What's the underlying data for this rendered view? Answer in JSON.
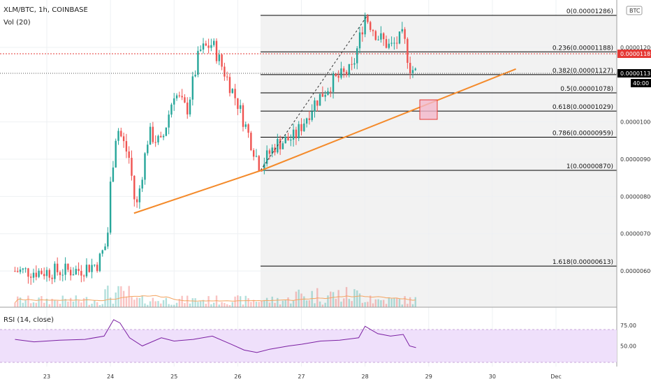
{
  "header": {
    "symbol_line": "XLM/BTC, 1h, COINBASE",
    "volume_label": "Vol (20)",
    "rsi_label": "RSI (14, close)",
    "corner_tag": "BTC"
  },
  "chart_data": {
    "type": "candlestick",
    "symbol": "XLM/BTC",
    "interval": "1h",
    "exchange": "COINBASE",
    "y_ticks": [
      "0.00001200",
      "0.00001000",
      "0.00000900",
      "0.00000800",
      "0.00000700",
      "0.00000600"
    ],
    "x_ticks": [
      "23",
      "24",
      "25",
      "26",
      "27",
      "28",
      "29",
      "30",
      "Dec"
    ],
    "price_tags": {
      "upper": "0.00001181",
      "current": "0.00001131",
      "countdown": "40:00"
    },
    "fib_levels": [
      {
        "label": "0(0.00001286)",
        "value": 1.286e-05
      },
      {
        "label": "0.236(0.00001188)",
        "value": 1.188e-05
      },
      {
        "label": "0.382(0.00001127)",
        "value": 1.127e-05
      },
      {
        "label": "0.5(0.00001078)",
        "value": 1.078e-05
      },
      {
        "label": "0.618(0.00001029)",
        "value": 1.029e-05
      },
      {
        "label": "0.786(0.00000959)",
        "value": 9.59e-06
      },
      {
        "label": "1(0.00000870)",
        "value": 8.7e-06
      },
      {
        "label": "1.618(0.00000613)",
        "value": 6.13e-06
      }
    ],
    "trendline": [
      {
        "date": "24",
        "price": 7.55e-06
      },
      {
        "date": "26",
        "price": 8.7e-06
      },
      {
        "date": "30",
        "price": 1.142e-05
      }
    ],
    "price_path": [
      {
        "x": "22.5",
        "price": 6e-06
      },
      {
        "x": "23.0",
        "price": 5.98e-06
      },
      {
        "x": "23.5",
        "price": 6.02e-06
      },
      {
        "x": "23.8",
        "price": 6.2e-06
      },
      {
        "x": "23.95",
        "price": 6.8e-06
      },
      {
        "x": "24.0",
        "price": 8.3e-06
      },
      {
        "x": "24.1",
        "price": 9.9e-06
      },
      {
        "x": "24.3",
        "price": 9e-06
      },
      {
        "x": "24.4",
        "price": 7.6e-06
      },
      {
        "x": "24.6",
        "price": 9.7e-06
      },
      {
        "x": "24.8",
        "price": 9.4e-06
      },
      {
        "x": "25.0",
        "price": 1.08e-05
      },
      {
        "x": "25.2",
        "price": 1.03e-05
      },
      {
        "x": "25.4",
        "price": 1.19e-05
      },
      {
        "x": "25.6",
        "price": 1.21e-05
      },
      {
        "x": "25.8",
        "price": 1.13e-05
      },
      {
        "x": "26.0",
        "price": 1.05e-05
      },
      {
        "x": "26.2",
        "price": 9.5e-06
      },
      {
        "x": "26.35",
        "price": 8.8e-06
      },
      {
        "x": "26.6",
        "price": 9.4e-06
      },
      {
        "x": "26.9",
        "price": 9.6e-06
      },
      {
        "x": "27.2",
        "price": 1.05e-05
      },
      {
        "x": "27.5",
        "price": 1.11e-05
      },
      {
        "x": "27.8",
        "price": 1.14e-05
      },
      {
        "x": "28.0",
        "price": 1.286e-05
      },
      {
        "x": "28.2",
        "price": 1.23e-05
      },
      {
        "x": "28.4",
        "price": 1.2e-05
      },
      {
        "x": "28.6",
        "price": 1.23e-05
      },
      {
        "x": "28.7",
        "price": 1.15e-05
      },
      {
        "x": "28.8",
        "price": 1.131e-05
      }
    ],
    "rsi": {
      "y_ticks": [
        "75.00",
        "50.00"
      ],
      "upper_band": 70,
      "lower_band": 30,
      "values": [
        {
          "x": "22.5",
          "v": 58
        },
        {
          "x": "22.8",
          "v": 55
        },
        {
          "x": "23.2",
          "v": 57
        },
        {
          "x": "23.6",
          "v": 58
        },
        {
          "x": "23.9",
          "v": 62
        },
        {
          "x": "24.05",
          "v": 82
        },
        {
          "x": "24.15",
          "v": 78
        },
        {
          "x": "24.3",
          "v": 60
        },
        {
          "x": "24.5",
          "v": 50
        },
        {
          "x": "24.8",
          "v": 60
        },
        {
          "x": "25.0",
          "v": 56
        },
        {
          "x": "25.3",
          "v": 58
        },
        {
          "x": "25.6",
          "v": 62
        },
        {
          "x": "25.9",
          "v": 52
        },
        {
          "x": "26.1",
          "v": 45
        },
        {
          "x": "26.3",
          "v": 42
        },
        {
          "x": "26.5",
          "v": 46
        },
        {
          "x": "26.8",
          "v": 50
        },
        {
          "x": "27.0",
          "v": 52
        },
        {
          "x": "27.3",
          "v": 56
        },
        {
          "x": "27.6",
          "v": 57
        },
        {
          "x": "27.9",
          "v": 60
        },
        {
          "x": "28.0",
          "v": 74
        },
        {
          "x": "28.2",
          "v": 65
        },
        {
          "x": "28.4",
          "v": 62
        },
        {
          "x": "28.6",
          "v": 64
        },
        {
          "x": "28.7",
          "v": 50
        },
        {
          "x": "28.8",
          "v": 48
        }
      ]
    },
    "colors": {
      "up": "#26a69a",
      "down": "#ef5350",
      "fib_line": "#000000",
      "trendline": "#f48a2a",
      "red_dotted": "#e53935",
      "rsi_line": "#7b1fa2",
      "rsi_band": "#efe0fb",
      "volume_ma": "#f4a460",
      "highlight_box": "#f3b6c9"
    },
    "grid": true,
    "legend": "top-left"
  }
}
